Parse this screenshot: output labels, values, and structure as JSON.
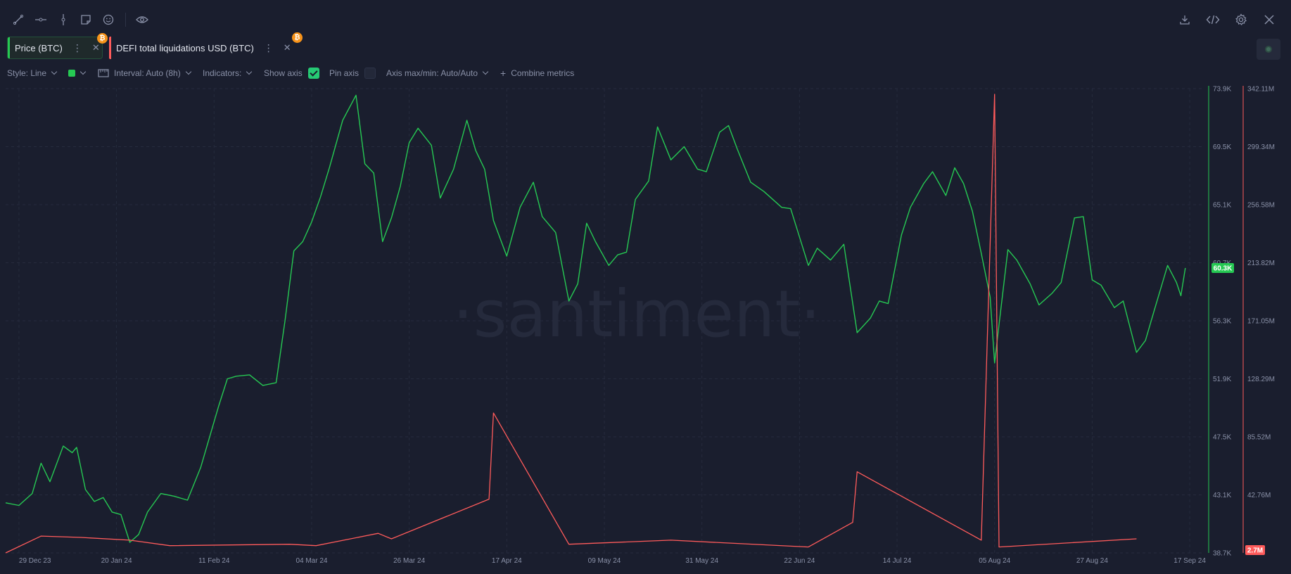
{
  "toolbar": {
    "left_icons": [
      "line-tool-icon",
      "horizontal-ray-icon",
      "vertical-line-icon",
      "note-icon",
      "emoji-icon",
      "eye-icon"
    ],
    "right_icons": [
      "download-icon",
      "embed-code-icon",
      "settings-gear-icon",
      "close-icon"
    ]
  },
  "metrics": [
    {
      "label": "Price (BTC)",
      "color": "#26c953"
    },
    {
      "label": "DEFI total liquidations USD (BTC)",
      "color": "#ff5b5b"
    }
  ],
  "settings": {
    "style": "Style: Line",
    "interval": "Interval: Auto (8h)",
    "indicators": "Indicators:",
    "show_axis": "Show axis",
    "show_axis_checked": true,
    "pin_axis": "Pin axis",
    "pin_axis_checked": false,
    "axis_maxmin": "Axis max/min: Auto/Auto",
    "combine": "Combine metrics"
  },
  "chart_data": {
    "type": "line",
    "watermark": "·santiment·",
    "x_ticks": [
      "29 Dec 23",
      "20 Jan 24",
      "11 Feb 24",
      "04 Mar 24",
      "26 Mar 24",
      "17 Apr 24",
      "09 May 24",
      "31 May 24",
      "22 Jun 24",
      "14 Jul 24",
      "05 Aug 24",
      "27 Aug 24",
      "17 Sep 24"
    ],
    "xlim": [
      "2023-12-26",
      "2024-09-21"
    ],
    "y_left": {
      "ticks": [
        "73.9K",
        "69.5K",
        "65.1K",
        "60.7K",
        "56.3K",
        "51.9K",
        "47.5K",
        "43.1K",
        "38.7K"
      ],
      "range": [
        38700,
        73900
      ],
      "current_label": "60.3K"
    },
    "y_right": {
      "ticks": [
        "342.11M",
        "299.34M",
        "256.58M",
        "213.82M",
        "171.05M",
        "128.29M",
        "85.52M",
        "42.76M"
      ],
      "range": [
        2700000,
        342110000
      ],
      "current_label": "2.7M"
    },
    "series": [
      {
        "name": "Price (BTC)",
        "axis": "left",
        "color": "#26c953",
        "points": [
          [
            "2023-12-26",
            42500
          ],
          [
            "2023-12-29",
            42300
          ],
          [
            "2024-01-01",
            43200
          ],
          [
            "2024-01-03",
            45500
          ],
          [
            "2024-01-05",
            44100
          ],
          [
            "2024-01-08",
            46800
          ],
          [
            "2024-01-10",
            46300
          ],
          [
            "2024-01-11",
            46700
          ],
          [
            "2024-01-13",
            43500
          ],
          [
            "2024-01-15",
            42600
          ],
          [
            "2024-01-17",
            42900
          ],
          [
            "2024-01-19",
            41800
          ],
          [
            "2024-01-21",
            41600
          ],
          [
            "2024-01-23",
            39500
          ],
          [
            "2024-01-25",
            40100
          ],
          [
            "2024-01-27",
            41800
          ],
          [
            "2024-01-30",
            43200
          ],
          [
            "2024-02-02",
            43000
          ],
          [
            "2024-02-05",
            42700
          ],
          [
            "2024-02-08",
            45200
          ],
          [
            "2024-02-10",
            47500
          ],
          [
            "2024-02-12",
            49800
          ],
          [
            "2024-02-14",
            51900
          ],
          [
            "2024-02-16",
            52100
          ],
          [
            "2024-02-19",
            52200
          ],
          [
            "2024-02-22",
            51400
          ],
          [
            "2024-02-25",
            51600
          ],
          [
            "2024-02-27",
            56300
          ],
          [
            "2024-02-29",
            61600
          ],
          [
            "2024-03-02",
            62300
          ],
          [
            "2024-03-04",
            63800
          ],
          [
            "2024-03-06",
            65700
          ],
          [
            "2024-03-08",
            67900
          ],
          [
            "2024-03-11",
            71500
          ],
          [
            "2024-03-14",
            73400
          ],
          [
            "2024-03-16",
            68200
          ],
          [
            "2024-03-18",
            67500
          ],
          [
            "2024-03-20",
            62300
          ],
          [
            "2024-03-22",
            64100
          ],
          [
            "2024-03-24",
            66500
          ],
          [
            "2024-03-26",
            69800
          ],
          [
            "2024-03-28",
            70900
          ],
          [
            "2024-03-31",
            69600
          ],
          [
            "2024-04-02",
            65600
          ],
          [
            "2024-04-05",
            67800
          ],
          [
            "2024-04-08",
            71500
          ],
          [
            "2024-04-10",
            69200
          ],
          [
            "2024-04-12",
            67800
          ],
          [
            "2024-04-14",
            63900
          ],
          [
            "2024-04-17",
            61200
          ],
          [
            "2024-04-20",
            64900
          ],
          [
            "2024-04-23",
            66800
          ],
          [
            "2024-04-25",
            64200
          ],
          [
            "2024-04-28",
            63000
          ],
          [
            "2024-05-01",
            57800
          ],
          [
            "2024-05-03",
            59100
          ],
          [
            "2024-05-05",
            63700
          ],
          [
            "2024-05-07",
            62300
          ],
          [
            "2024-05-10",
            60500
          ],
          [
            "2024-05-12",
            61300
          ],
          [
            "2024-05-14",
            61500
          ],
          [
            "2024-05-16",
            65500
          ],
          [
            "2024-05-19",
            66900
          ],
          [
            "2024-05-21",
            71000
          ],
          [
            "2024-05-24",
            68500
          ],
          [
            "2024-05-27",
            69500
          ],
          [
            "2024-05-30",
            67800
          ],
          [
            "2024-06-01",
            67600
          ],
          [
            "2024-06-04",
            70600
          ],
          [
            "2024-06-06",
            71100
          ],
          [
            "2024-06-08",
            69300
          ],
          [
            "2024-06-11",
            66800
          ],
          [
            "2024-06-14",
            66100
          ],
          [
            "2024-06-18",
            64900
          ],
          [
            "2024-06-20",
            64800
          ],
          [
            "2024-06-24",
            60500
          ],
          [
            "2024-06-26",
            61800
          ],
          [
            "2024-06-29",
            60900
          ],
          [
            "2024-07-02",
            62100
          ],
          [
            "2024-07-05",
            55400
          ],
          [
            "2024-07-08",
            56500
          ],
          [
            "2024-07-10",
            57800
          ],
          [
            "2024-07-12",
            57600
          ],
          [
            "2024-07-15",
            62800
          ],
          [
            "2024-07-17",
            64900
          ],
          [
            "2024-07-20",
            66700
          ],
          [
            "2024-07-22",
            67600
          ],
          [
            "2024-07-25",
            65800
          ],
          [
            "2024-07-27",
            67900
          ],
          [
            "2024-07-29",
            66700
          ],
          [
            "2024-07-31",
            64600
          ],
          [
            "2024-08-02",
            61400
          ],
          [
            "2024-08-04",
            58100
          ],
          [
            "2024-08-05",
            53100
          ],
          [
            "2024-08-06",
            56000
          ],
          [
            "2024-08-08",
            61700
          ],
          [
            "2024-08-10",
            60900
          ],
          [
            "2024-08-13",
            59100
          ],
          [
            "2024-08-15",
            57500
          ],
          [
            "2024-08-18",
            58400
          ],
          [
            "2024-08-20",
            59200
          ],
          [
            "2024-08-23",
            64100
          ],
          [
            "2024-08-25",
            64200
          ],
          [
            "2024-08-27",
            59400
          ],
          [
            "2024-08-29",
            59000
          ],
          [
            "2024-09-01",
            57300
          ],
          [
            "2024-09-03",
            57800
          ],
          [
            "2024-09-06",
            53900
          ],
          [
            "2024-09-08",
            54800
          ],
          [
            "2024-09-10",
            57100
          ],
          [
            "2024-09-13",
            60500
          ],
          [
            "2024-09-15",
            59200
          ],
          [
            "2024-09-16",
            58200
          ],
          [
            "2024-09-17",
            60300
          ]
        ]
      },
      {
        "name": "DEFI total liquidations USD (BTC)",
        "axis": "right",
        "color": "#ff5b5b",
        "points": [
          [
            "2023-12-26",
            2700000
          ],
          [
            "2024-01-03",
            15000000
          ],
          [
            "2024-01-12",
            14000000
          ],
          [
            "2024-01-23",
            12000000
          ],
          [
            "2024-02-01",
            8000000
          ],
          [
            "2024-02-28",
            9000000
          ],
          [
            "2024-03-05",
            8000000
          ],
          [
            "2024-03-19",
            17000000
          ],
          [
            "2024-03-22",
            13000000
          ],
          [
            "2024-04-13",
            42000000
          ],
          [
            "2024-04-14",
            105000000
          ],
          [
            "2024-05-01",
            9000000
          ],
          [
            "2024-05-24",
            12000000
          ],
          [
            "2024-06-24",
            7000000
          ],
          [
            "2024-07-04",
            25000000
          ],
          [
            "2024-07-05",
            62000000
          ],
          [
            "2024-08-02",
            12000000
          ],
          [
            "2024-08-05",
            338000000
          ],
          [
            "2024-08-06",
            7000000
          ],
          [
            "2024-09-06",
            13000000
          ]
        ]
      }
    ]
  }
}
